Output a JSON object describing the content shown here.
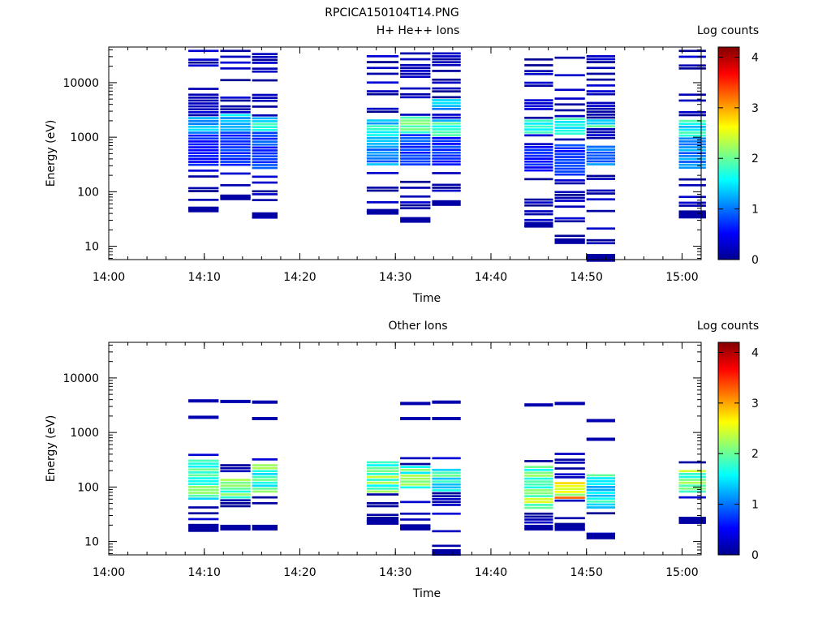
{
  "figure": {
    "title": "RPCICA150104T14.PNG"
  },
  "colormap": [
    "#00008f",
    "#0000ff",
    "#0080ff",
    "#00ffff",
    "#80ff80",
    "#ffff00",
    "#ff8000",
    "#ff0000",
    "#800000"
  ],
  "chart_data": [
    {
      "type": "heatmap",
      "title": "H+ He++ Ions",
      "xlabel": "Time",
      "ylabel": "Energy (eV)",
      "colorbar_label": "Log counts",
      "x_range": [
        "14:00",
        "15:02"
      ],
      "x_ticks": [
        "14:00",
        "14:10",
        "14:20",
        "14:30",
        "14:40",
        "14:50",
        "15:00"
      ],
      "y_scale": "log",
      "y_range": [
        5.7,
        45000
      ],
      "y_ticks": [
        10,
        100,
        1000,
        10000
      ],
      "y_tick_labels": [
        "10",
        "100",
        "1000",
        "10000"
      ],
      "colorbar_range": [
        0,
        4.2
      ],
      "colorbar_ticks": [
        0,
        1,
        2,
        3,
        4
      ],
      "sweeps": [
        {
          "t_start": "14:08:20",
          "t_end": "14:11:30",
          "e_min": 42,
          "e_max": 40000,
          "bands": [
            {
              "e_lo": 300,
              "e_hi": 1100,
              "level": 0.6
            },
            {
              "e_lo": 1100,
              "e_hi": 2300,
              "level": 1.3
            },
            {
              "e_lo": 3000,
              "e_hi": 6000,
              "level": 0.2
            }
          ]
        },
        {
          "t_start": "14:11:40",
          "t_end": "14:14:50",
          "e_min": 70,
          "e_max": 40000,
          "bands": [
            {
              "e_lo": 280,
              "e_hi": 1200,
              "level": 0.8
            },
            {
              "e_lo": 1200,
              "e_hi": 2500,
              "level": 1.4
            }
          ]
        },
        {
          "t_start": "14:15:00",
          "t_end": "14:17:40",
          "e_min": 33,
          "e_max": 35000,
          "bands": [
            {
              "e_lo": 250,
              "e_hi": 1200,
              "level": 0.8
            },
            {
              "e_lo": 1200,
              "e_hi": 2200,
              "level": 1.5
            }
          ]
        },
        {
          "t_start": "14:27:00",
          "t_end": "14:30:20",
          "e_min": 38,
          "e_max": 32000,
          "bands": [
            {
              "e_lo": 300,
              "e_hi": 900,
              "level": 1.1
            },
            {
              "e_lo": 900,
              "e_hi": 2200,
              "level": 1.5
            }
          ]
        },
        {
          "t_start": "14:30:30",
          "t_end": "14:33:40",
          "e_min": 27,
          "e_max": 36000,
          "bands": [
            {
              "e_lo": 300,
              "e_hi": 1200,
              "level": 0.8
            },
            {
              "e_lo": 1200,
              "e_hi": 2300,
              "level": 2.0
            }
          ]
        },
        {
          "t_start": "14:33:50",
          "t_end": "14:36:50",
          "e_min": 55,
          "e_max": 36000,
          "bands": [
            {
              "e_lo": 280,
              "e_hi": 1000,
              "level": 0.7
            },
            {
              "e_lo": 1000,
              "e_hi": 2200,
              "level": 1.6
            },
            {
              "e_lo": 3000,
              "e_hi": 5000,
              "level": 1.2
            }
          ]
        },
        {
          "t_start": "14:43:30",
          "t_end": "14:46:30",
          "e_min": 22,
          "e_max": 28000,
          "bands": [
            {
              "e_lo": 220,
              "e_hi": 700,
              "level": 0.6
            },
            {
              "e_lo": 1100,
              "e_hi": 2200,
              "level": 1.5
            },
            {
              "e_lo": 3000,
              "e_hi": 5000,
              "level": 0.3
            }
          ]
        },
        {
          "t_start": "14:46:40",
          "t_end": "14:49:50",
          "e_min": 11,
          "e_max": 30000,
          "bands": [
            {
              "e_lo": 180,
              "e_hi": 700,
              "level": 0.7
            },
            {
              "e_lo": 1100,
              "e_hi": 2200,
              "level": 1.6
            }
          ]
        },
        {
          "t_start": "14:50:00",
          "t_end": "14:53:00",
          "e_min": 5.7,
          "e_max": 32000,
          "bands": [
            {
              "e_lo": 300,
              "e_hi": 700,
              "level": 1.0
            },
            {
              "e_lo": 1500,
              "e_hi": 2200,
              "level": 1.6
            }
          ]
        },
        {
          "t_start": "14:59:40",
          "t_end": "15:02:30",
          "e_min": 33,
          "e_max": 40000,
          "bands": [
            {
              "e_lo": 250,
              "e_hi": 1000,
              "level": 1.1
            },
            {
              "e_lo": 1000,
              "e_hi": 2200,
              "level": 1.6
            }
          ]
        }
      ]
    },
    {
      "type": "heatmap",
      "title": "Other Ions",
      "xlabel": "Time",
      "ylabel": "Energy (eV)",
      "colorbar_label": "Log counts",
      "x_range": [
        "14:00",
        "15:02"
      ],
      "x_ticks": [
        "14:00",
        "14:10",
        "14:20",
        "14:30",
        "14:40",
        "14:50",
        "15:00"
      ],
      "y_scale": "log",
      "y_range": [
        5.7,
        45000
      ],
      "y_ticks": [
        10,
        100,
        1000,
        10000
      ],
      "y_tick_labels": [
        "10",
        "100",
        "1000",
        "10000"
      ],
      "colorbar_range": [
        0,
        4.2
      ],
      "colorbar_ticks": [
        0,
        1,
        2,
        3,
        4
      ],
      "sweeps": [
        {
          "t_start": "14:08:20",
          "t_end": "14:11:30",
          "e_min": 16,
          "e_max": 520,
          "bands": [
            {
              "e_lo": 60,
              "e_hi": 300,
              "level": 1.8
            }
          ],
          "lines": [
            1900,
            3800
          ]
        },
        {
          "t_start": "14:11:40",
          "t_end": "14:14:50",
          "e_min": 16,
          "e_max": 380,
          "bands": [
            {
              "e_lo": 60,
              "e_hi": 150,
              "level": 2.1
            }
          ],
          "lines": [
            3700
          ]
        },
        {
          "t_start": "14:15:00",
          "t_end": "14:17:40",
          "e_min": 16,
          "e_max": 380,
          "bands": [
            {
              "e_lo": 80,
              "e_hi": 250,
              "level": 1.9
            }
          ],
          "lines": [
            1800,
            3600
          ]
        },
        {
          "t_start": "14:27:00",
          "t_end": "14:30:20",
          "e_min": 21,
          "e_max": 380,
          "bands": [
            {
              "e_lo": 80,
              "e_hi": 300,
              "level": 2.0
            }
          ],
          "lines": []
        },
        {
          "t_start": "14:30:30",
          "t_end": "14:33:40",
          "e_min": 16,
          "e_max": 400,
          "bands": [
            {
              "e_lo": 90,
              "e_hi": 250,
              "level": 1.9
            }
          ],
          "lines": [
            1800,
            3400
          ]
        },
        {
          "t_start": "14:33:50",
          "t_end": "14:36:50",
          "e_min": 5.7,
          "e_max": 400,
          "bands": [
            {
              "e_lo": 80,
              "e_hi": 220,
              "level": 1.7
            }
          ],
          "lines": [
            1800,
            3600
          ]
        },
        {
          "t_start": "14:43:30",
          "t_end": "14:46:30",
          "e_min": 16,
          "e_max": 400,
          "bands": [
            {
              "e_lo": 40,
              "e_hi": 250,
              "level": 2.0
            }
          ],
          "lines": [
            3200
          ]
        },
        {
          "t_start": "14:46:40",
          "t_end": "14:49:50",
          "e_min": 16,
          "e_max": 480,
          "bands": [
            {
              "e_lo": 60,
              "e_hi": 120,
              "level": 2.7
            }
          ],
          "lines": [
            3400
          ]
        },
        {
          "t_start": "14:50:00",
          "t_end": "14:53:00",
          "e_min": 11,
          "e_max": 360,
          "bands": [
            {
              "e_lo": 40,
              "e_hi": 180,
              "level": 1.6
            }
          ],
          "lines": [
            750,
            1650
          ]
        },
        {
          "t_start": "14:59:40",
          "t_end": "15:02:30",
          "e_min": 21,
          "e_max": 380,
          "bands": [
            {
              "e_lo": 80,
              "e_hi": 200,
              "level": 2.0
            }
          ],
          "lines": []
        }
      ]
    }
  ]
}
